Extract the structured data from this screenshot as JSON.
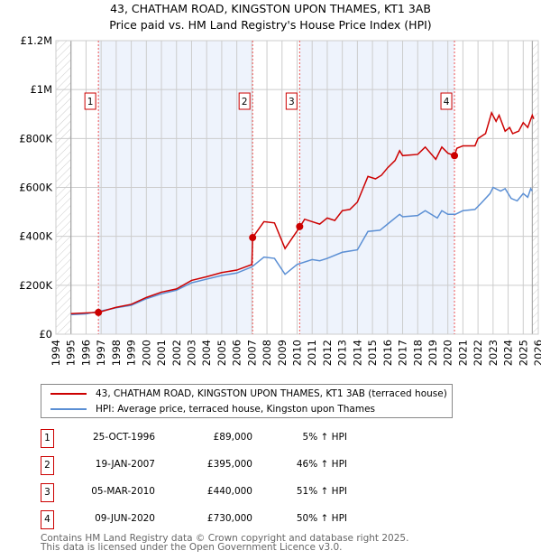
{
  "chart_data": {
    "type": "line",
    "title": "43, CHATHAM ROAD, KINGSTON UPON THAMES, KT1 3AB",
    "subtitle": "Price paid vs. HM Land Registry's House Price Index (HPI)",
    "xlim": [
      1994,
      2026
    ],
    "ylim": [
      0,
      1200000
    ],
    "x_ticks": [
      "1994",
      "1995",
      "1996",
      "1997",
      "1998",
      "1999",
      "2000",
      "2001",
      "2002",
      "2003",
      "2004",
      "2005",
      "2006",
      "2007",
      "2008",
      "2009",
      "2010",
      "2011",
      "2012",
      "2013",
      "2014",
      "2015",
      "2016",
      "2017",
      "2018",
      "2019",
      "2020",
      "2021",
      "2022",
      "2023",
      "2024",
      "2025",
      "2026"
    ],
    "y_ticks": [
      {
        "v": 0,
        "label": "£0"
      },
      {
        "v": 200000,
        "label": "£200K"
      },
      {
        "v": 400000,
        "label": "£400K"
      },
      {
        "v": 600000,
        "label": "£600K"
      },
      {
        "v": 800000,
        "label": "£800K"
      },
      {
        "v": 1000000,
        "label": "£1M"
      },
      {
        "v": 1200000,
        "label": "£1.2M"
      }
    ],
    "grid": true,
    "series": [
      {
        "name": "43, CHATHAM ROAD, KINGSTON UPON THAMES, KT1 3AB (terraced house)",
        "color": "#cc0000",
        "x": [
          1995,
          1996,
          1996.8,
          1997,
          1998,
          1999,
          2000,
          2001,
          2002,
          2003,
          2004,
          2005,
          2006,
          2007,
          2007.05,
          2007.8,
          2008.5,
          2009.2,
          2010.2,
          2010.5,
          2011,
          2011.5,
          2012,
          2012.5,
          2013,
          2013.5,
          2014,
          2014.7,
          2015.2,
          2015.6,
          2016,
          2016.5,
          2016.8,
          2017,
          2018,
          2018.5,
          2019.2,
          2019.6,
          2020,
          2020.44,
          2020.6,
          2021,
          2021.8,
          2022,
          2022.5,
          2022.9,
          2023.2,
          2023.4,
          2023.8,
          2024.1,
          2024.3,
          2024.7,
          2025,
          2025.3,
          2025.6,
          2025.7
        ],
        "y": [
          84000,
          87000,
          89000,
          92000,
          110000,
          122000,
          150000,
          172000,
          185000,
          220000,
          235000,
          252000,
          262000,
          285000,
          395000,
          460000,
          455000,
          350000,
          440000,
          470000,
          460000,
          450000,
          475000,
          465000,
          505000,
          510000,
          540000,
          645000,
          635000,
          650000,
          680000,
          710000,
          750000,
          730000,
          735000,
          765000,
          715000,
          765000,
          740000,
          730000,
          760000,
          770000,
          770000,
          800000,
          820000,
          905000,
          870000,
          895000,
          830000,
          845000,
          820000,
          830000,
          865000,
          845000,
          895000,
          880000
        ]
      },
      {
        "name": "HPI: Average price, terraced house, Kingston upon Thames",
        "color": "#5b8fd4",
        "x": [
          1995,
          1996,
          1997,
          1998,
          1999,
          2000,
          2001,
          2002,
          2003,
          2004,
          2005,
          2006,
          2007,
          2007.8,
          2008.5,
          2009.2,
          2010,
          2011,
          2011.5,
          2012,
          2013,
          2014,
          2014.7,
          2015.5,
          2016,
          2016.8,
          2017,
          2018,
          2018.5,
          2019.3,
          2019.6,
          2020,
          2020.5,
          2021,
          2021.8,
          2022.2,
          2022.8,
          2023,
          2023.5,
          2023.8,
          2024.2,
          2024.6,
          2025,
          2025.3,
          2025.5,
          2025.6
        ],
        "y": [
          80000,
          83000,
          95000,
          108000,
          118000,
          145000,
          165000,
          180000,
          210000,
          225000,
          240000,
          250000,
          275000,
          315000,
          310000,
          245000,
          285000,
          305000,
          300000,
          310000,
          335000,
          345000,
          420000,
          425000,
          450000,
          490000,
          480000,
          485000,
          505000,
          475000,
          505000,
          490000,
          490000,
          505000,
          510000,
          535000,
          575000,
          600000,
          585000,
          595000,
          555000,
          545000,
          575000,
          560000,
          595000,
          585000
        ]
      }
    ],
    "sales": [
      {
        "n": "1",
        "x": 1996.82,
        "y": 89000,
        "date": "25-OCT-1996",
        "price": "£89,000",
        "hpi": "5% ↑ HPI"
      },
      {
        "n": "2",
        "x": 2007.05,
        "y": 395000,
        "date": "19-JAN-2007",
        "price": "£395,000",
        "hpi": "46% ↑ HPI"
      },
      {
        "n": "3",
        "x": 2010.17,
        "y": 440000,
        "date": "05-MAR-2010",
        "price": "£440,000",
        "hpi": "51% ↑ HPI"
      },
      {
        "n": "4",
        "x": 2020.44,
        "y": 730000,
        "date": "09-JUN-2020",
        "price": "£730,000",
        "hpi": "50% ↑ HPI"
      }
    ],
    "data_start": 1995,
    "data_end": 2025.6
  },
  "footer": [
    "Contains HM Land Registry data © Crown copyright and database right 2025.",
    "This data is licensed under the Open Government Licence v3.0."
  ]
}
